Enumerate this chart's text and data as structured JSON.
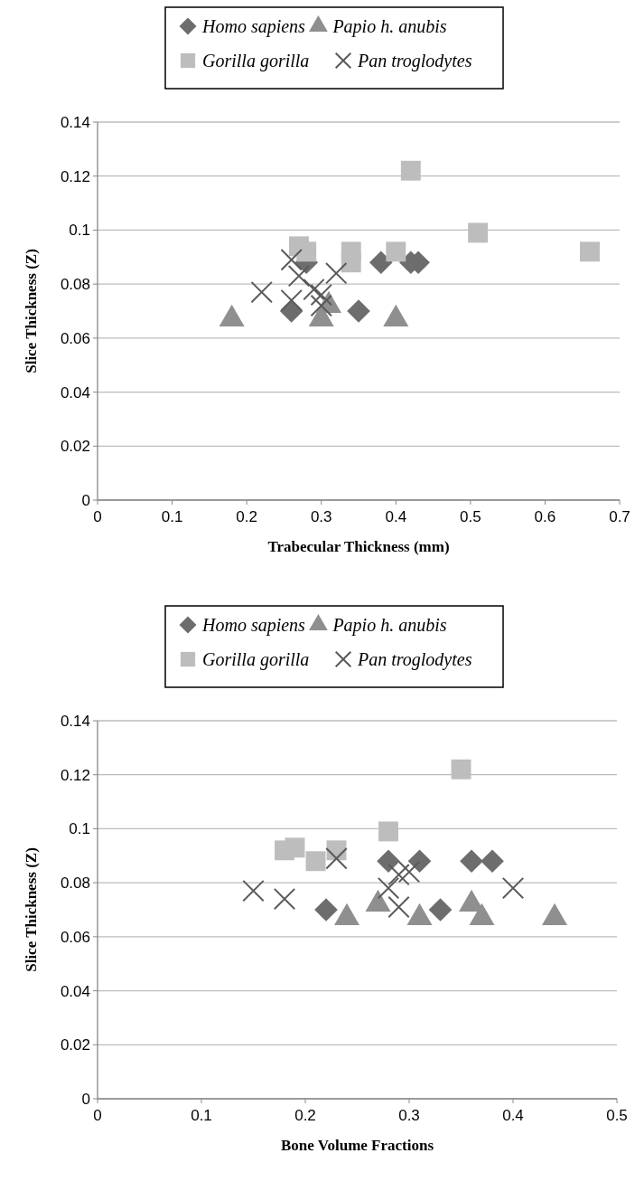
{
  "chart_data": [
    {
      "type": "scatter",
      "xlabel": "Trabecular Thickness (mm)",
      "ylabel": "Slice Thickness (Z)",
      "xlim": [
        0,
        0.7
      ],
      "xticks": [
        0,
        0.1,
        0.2,
        0.3,
        0.4,
        0.5,
        0.6,
        0.7
      ],
      "ylim": [
        0,
        0.14
      ],
      "yticks": [
        0,
        0.02,
        0.04,
        0.06,
        0.08,
        0.1,
        0.12,
        0.14
      ],
      "grid": "y",
      "legend": "top",
      "series": [
        {
          "name": "Homo sapiens",
          "color": "#6d6d6d",
          "marker": "diamond",
          "x": [
            0.26,
            0.28,
            0.35,
            0.38,
            0.42,
            0.43
          ],
          "values": [
            0.07,
            0.088,
            0.07,
            0.088,
            0.088,
            0.088
          ]
        },
        {
          "name": "Papio h. anubis",
          "color": "#8f8f8f",
          "marker": "triangle",
          "x": [
            0.18,
            0.3,
            0.31,
            0.4
          ],
          "values": [
            0.067,
            0.067,
            0.072,
            0.067
          ]
        },
        {
          "name": "Gorilla gorilla",
          "color": "#bdbdbd",
          "marker": "square",
          "x": [
            0.27,
            0.28,
            0.34,
            0.34,
            0.4,
            0.42,
            0.51,
            0.66
          ],
          "values": [
            0.094,
            0.092,
            0.092,
            0.088,
            0.092,
            0.122,
            0.099,
            0.092
          ]
        },
        {
          "name": "Pan troglodytes",
          "color": "#5a5a5a",
          "marker": "cross",
          "x": [
            0.22,
            0.26,
            0.26,
            0.27,
            0.29,
            0.3,
            0.32,
            0.3
          ],
          "values": [
            0.077,
            0.089,
            0.074,
            0.083,
            0.078,
            0.072,
            0.084,
            0.076
          ]
        }
      ]
    },
    {
      "type": "scatter",
      "xlabel": "Bone Volume Fractions",
      "ylabel": "Slice Thickness (Z)",
      "xlim": [
        0,
        0.5
      ],
      "xticks": [
        0,
        0.1,
        0.2,
        0.3,
        0.4,
        0.5
      ],
      "ylim": [
        0,
        0.14
      ],
      "yticks": [
        0,
        0.02,
        0.04,
        0.06,
        0.08,
        0.1,
        0.12,
        0.14
      ],
      "grid": "y",
      "legend": "top",
      "series": [
        {
          "name": "Homo sapiens",
          "color": "#6d6d6d",
          "marker": "diamond",
          "x": [
            0.22,
            0.28,
            0.31,
            0.33,
            0.36,
            0.38
          ],
          "values": [
            0.07,
            0.088,
            0.088,
            0.07,
            0.088,
            0.088
          ]
        },
        {
          "name": "Papio h. anubis",
          "color": "#8f8f8f",
          "marker": "triangle",
          "x": [
            0.24,
            0.27,
            0.31,
            0.36,
            0.37,
            0.44
          ],
          "values": [
            0.067,
            0.072,
            0.067,
            0.072,
            0.067,
            0.067
          ]
        },
        {
          "name": "Gorilla gorilla",
          "color": "#bdbdbd",
          "marker": "square",
          "x": [
            0.18,
            0.19,
            0.21,
            0.23,
            0.28,
            0.35
          ],
          "values": [
            0.092,
            0.093,
            0.088,
            0.092,
            0.099,
            0.122
          ]
        },
        {
          "name": "Pan troglodytes",
          "color": "#5a5a5a",
          "marker": "cross",
          "x": [
            0.15,
            0.18,
            0.23,
            0.28,
            0.29,
            0.29,
            0.3,
            0.4
          ],
          "values": [
            0.077,
            0.074,
            0.089,
            0.078,
            0.071,
            0.083,
            0.084,
            0.078
          ]
        }
      ]
    }
  ]
}
